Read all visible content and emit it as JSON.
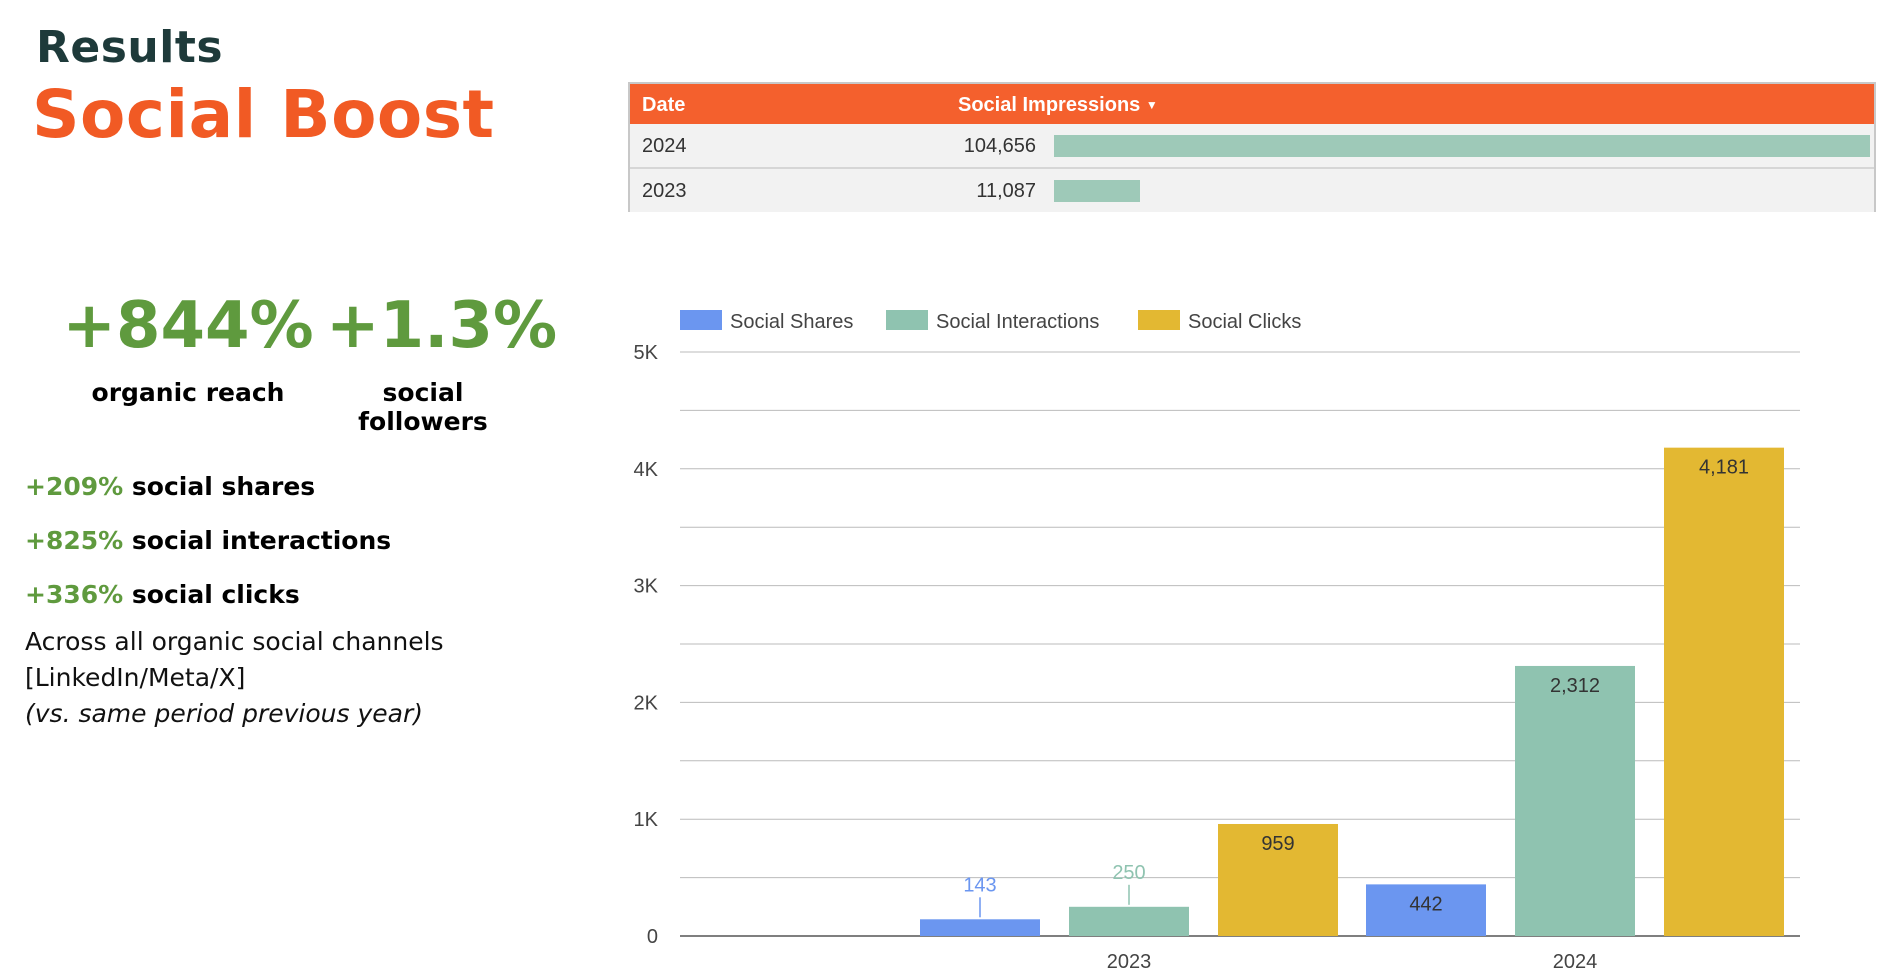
{
  "header": {
    "label": "Results",
    "title": "Social Boost"
  },
  "kpis": [
    {
      "value": "+844%",
      "label": "organic reach"
    },
    {
      "value": "+1.3%",
      "label": "social followers"
    }
  ],
  "metrics": [
    {
      "pct": "+209%",
      "label": " social shares"
    },
    {
      "pct": "+825%",
      "label": " social interactions"
    },
    {
      "pct": "+336%",
      "label": " social clicks"
    }
  ],
  "note": {
    "line1": "Across all organic social channels",
    "line2": "[LinkedIn/Meta/X]",
    "line3": "(vs. same period previous year)"
  },
  "table": {
    "col_date": "Date",
    "col_metric": "Social Impressions",
    "sort_icon": "sort-desc-icon",
    "header_color": "#f4602d",
    "bar_color": "#9ec9b8",
    "rows": [
      {
        "date": "2024",
        "value": "104,656",
        "fraction": 1.0
      },
      {
        "date": "2023",
        "value": "11,087",
        "fraction": 0.106
      }
    ]
  },
  "chart_data": {
    "type": "bar",
    "categories": [
      "2023",
      "2024"
    ],
    "series": [
      {
        "name": "Social Shares",
        "color": "#6b96f0",
        "values": [
          143,
          442
        ]
      },
      {
        "name": "Social Interactions",
        "color": "#8fc3b0",
        "values": [
          250,
          2312
        ]
      },
      {
        "name": "Social Clicks",
        "color": "#e3b832",
        "values": [
          959,
          4181
        ]
      }
    ],
    "ylim": [
      0,
      5000
    ],
    "yticks": [
      0,
      1000,
      2000,
      3000,
      4000,
      5000
    ],
    "ytick_labels": [
      "0",
      "1K",
      "2K",
      "3K",
      "4K",
      "5K"
    ],
    "value_labels": [
      [
        "143",
        "442"
      ],
      [
        "250",
        "2,312"
      ],
      [
        "959",
        "4,181"
      ]
    ],
    "legend_position": "top-left",
    "grid": true
  }
}
